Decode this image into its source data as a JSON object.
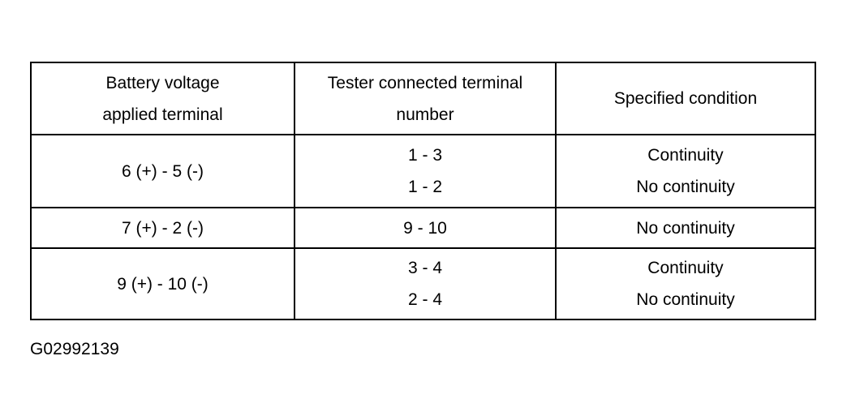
{
  "table": {
    "headers": [
      [
        "Battery voltage",
        "applied terminal"
      ],
      [
        "Tester connected terminal",
        "number"
      ],
      [
        "Specified condition"
      ]
    ],
    "rows": [
      {
        "applied": "6 (+) - 5 (-)",
        "tester": [
          "1 - 3",
          "1 - 2"
        ],
        "condition": [
          "Continuity",
          "No continuity"
        ]
      },
      {
        "applied": "7 (+) - 2 (-)",
        "tester": [
          "9 - 10"
        ],
        "condition": [
          "No continuity"
        ]
      },
      {
        "applied": "9 (+) - 10 (-)",
        "tester": [
          "3 - 4",
          "2 - 4"
        ],
        "condition": [
          "Continuity",
          "No continuity"
        ]
      }
    ]
  },
  "figure_code": "G02992139"
}
